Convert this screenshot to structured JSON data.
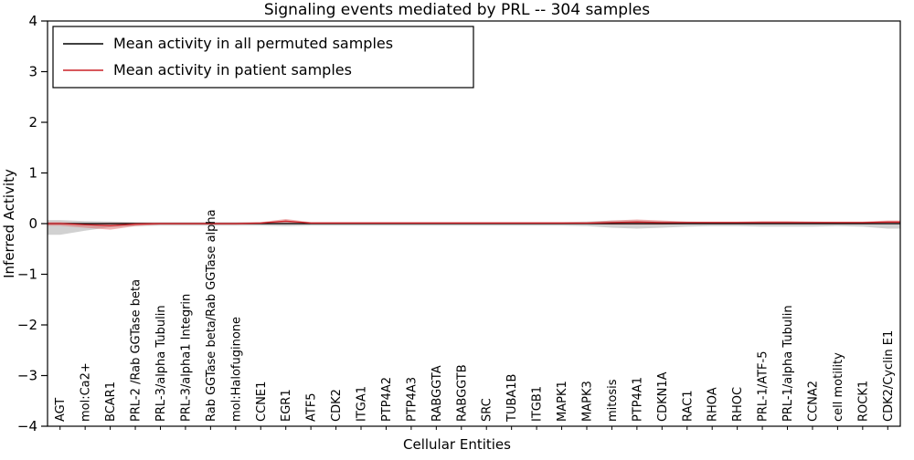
{
  "title": "Signaling events mediated by PRL -- 304 samples",
  "chart_data": {
    "type": "line",
    "title": "Signaling events mediated by PRL -- 304 samples",
    "xlabel": "Cellular Entities",
    "ylabel": "Inferred Activity",
    "ylim": [
      -4,
      4
    ],
    "yticks": [
      -4,
      -3,
      -2,
      -1,
      0,
      1,
      2,
      3,
      4
    ],
    "grid": false,
    "legend_position": "upper left",
    "legend": [
      {
        "label": "Mean activity in all permuted samples",
        "color": "#000000"
      },
      {
        "label": "Mean activity in patient samples",
        "color": "#cc2127"
      }
    ],
    "categories": [
      "AGT",
      "mol:Ca2+",
      "BCAR1",
      "PRL-2 /Rab GGTase beta",
      "PRL-3/alpha Tubulin",
      "PRL-3/alpha1 Integrin",
      "Rab GGTase beta/Rab GGTase alpha",
      "mol:Halofuginone",
      "CCNE1",
      "EGR1",
      "ATF5",
      "CDK2",
      "ITGA1",
      "PTP4A2",
      "PTP4A3",
      "RABGGTA",
      "RABGGTB",
      "SRC",
      "TUBA1B",
      "ITGB1",
      "MAPK1",
      "MAPK3",
      "mitosis",
      "PTP4A1",
      "CDKN1A",
      "RAC1",
      "RHOA",
      "RHOC",
      "PRL-1/ATF-5",
      "PRL-1/alpha Tubulin",
      "CCNA2",
      "cell motility",
      "ROCK1",
      "CDK2/Cyclin E1"
    ],
    "series": [
      {
        "name": "Mean activity in all permuted samples",
        "color": "#000000",
        "band_color": "#999999",
        "band_opacity": 0.45,
        "values": [
          0,
          0,
          0,
          0,
          0,
          0,
          0,
          0,
          0,
          0,
          0,
          0,
          0,
          0,
          0,
          0,
          0,
          0,
          0,
          0,
          0,
          0,
          0,
          0,
          0,
          0,
          0,
          0,
          0,
          0,
          0,
          0,
          0,
          0
        ],
        "upper": [
          0.07,
          0.05,
          0.04,
          0.03,
          0.03,
          0.03,
          0.03,
          0.03,
          0.03,
          0.04,
          0.03,
          0.03,
          0.03,
          0.03,
          0.03,
          0.03,
          0.03,
          0.03,
          0.03,
          0.03,
          0.03,
          0.04,
          0.06,
          0.06,
          0.05,
          0.04,
          0.03,
          0.03,
          0.04,
          0.04,
          0.04,
          0.03,
          0.03,
          0.04
        ],
        "lower": [
          -0.22,
          -0.14,
          -0.07,
          -0.05,
          -0.04,
          -0.04,
          -0.04,
          -0.04,
          -0.04,
          -0.05,
          -0.04,
          -0.04,
          -0.04,
          -0.04,
          -0.04,
          -0.04,
          -0.04,
          -0.04,
          -0.04,
          -0.04,
          -0.04,
          -0.05,
          -0.08,
          -0.1,
          -0.08,
          -0.06,
          -0.05,
          -0.05,
          -0.06,
          -0.06,
          -0.06,
          -0.05,
          -0.06,
          -0.1
        ]
      },
      {
        "name": "Mean activity in patient samples",
        "color": "#cc2127",
        "band_color": "#e06666",
        "band_opacity": 0.5,
        "values": [
          0.0,
          -0.02,
          -0.04,
          -0.01,
          0.0,
          0.0,
          0.0,
          0.0,
          0.01,
          0.05,
          0.01,
          0.01,
          0.01,
          0.01,
          0.01,
          0.01,
          0.01,
          0.01,
          0.01,
          0.01,
          0.01,
          0.01,
          0.02,
          0.03,
          0.02,
          0.02,
          0.02,
          0.02,
          0.02,
          0.02,
          0.02,
          0.02,
          0.02,
          0.03
        ],
        "upper": [
          0.03,
          0.01,
          0.02,
          0.02,
          0.02,
          0.02,
          0.02,
          0.02,
          0.03,
          0.09,
          0.03,
          0.03,
          0.03,
          0.03,
          0.03,
          0.03,
          0.03,
          0.03,
          0.03,
          0.03,
          0.03,
          0.03,
          0.06,
          0.08,
          0.06,
          0.04,
          0.04,
          0.04,
          0.05,
          0.05,
          0.04,
          0.04,
          0.04,
          0.06
        ],
        "lower": [
          -0.04,
          -0.08,
          -0.12,
          -0.05,
          -0.02,
          -0.02,
          -0.02,
          -0.02,
          -0.01,
          0.01,
          -0.01,
          -0.01,
          -0.01,
          -0.01,
          -0.01,
          -0.01,
          -0.01,
          -0.01,
          -0.01,
          -0.01,
          -0.01,
          -0.01,
          -0.02,
          -0.02,
          -0.02,
          -0.01,
          -0.01,
          -0.01,
          -0.01,
          -0.01,
          -0.01,
          -0.01,
          -0.01,
          0.0
        ]
      }
    ]
  }
}
